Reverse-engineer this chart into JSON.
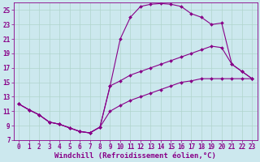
{
  "xlabel": "Windchill (Refroidissement éolien,°C)",
  "background_color": "#cce8ee",
  "grid_color": "#b0d4cc",
  "line_color": "#880088",
  "xlim": [
    -0.5,
    23.5
  ],
  "ylim": [
    7,
    26
  ],
  "xticks": [
    0,
    1,
    2,
    3,
    4,
    5,
    6,
    7,
    8,
    9,
    10,
    11,
    12,
    13,
    14,
    15,
    16,
    17,
    18,
    19,
    20,
    21,
    22,
    23
  ],
  "yticks": [
    7,
    9,
    11,
    13,
    15,
    17,
    19,
    21,
    23,
    25
  ],
  "line1_x": [
    0,
    1,
    2,
    3,
    4,
    5,
    6,
    7,
    8,
    9,
    10,
    11,
    12,
    13,
    14,
    15,
    16,
    17,
    18,
    19,
    20,
    21,
    22,
    23
  ],
  "line1_y": [
    12.0,
    11.2,
    10.5,
    9.5,
    9.2,
    8.7,
    8.2,
    8.0,
    8.8,
    14.5,
    21.0,
    24.0,
    25.5,
    25.8,
    25.9,
    25.8,
    25.5,
    24.5,
    24.0,
    23.0,
    23.2,
    17.5,
    16.5,
    15.5
  ],
  "line2_x": [
    0,
    1,
    2,
    3,
    4,
    5,
    6,
    7,
    8,
    9,
    10,
    11,
    12,
    13,
    14,
    15,
    16,
    17,
    18,
    19,
    20,
    21,
    22,
    23
  ],
  "line2_y": [
    12.0,
    11.2,
    10.5,
    9.5,
    9.2,
    8.7,
    8.2,
    8.0,
    8.8,
    14.5,
    15.2,
    16.0,
    16.5,
    17.0,
    17.5,
    18.0,
    18.5,
    19.0,
    19.5,
    20.0,
    19.8,
    17.5,
    16.5,
    15.5
  ],
  "line3_x": [
    0,
    1,
    2,
    3,
    4,
    5,
    6,
    7,
    8,
    9,
    10,
    11,
    12,
    13,
    14,
    15,
    16,
    17,
    18,
    19,
    20,
    21,
    22,
    23
  ],
  "line3_y": [
    12.0,
    11.2,
    10.5,
    9.5,
    9.2,
    8.7,
    8.2,
    8.0,
    8.8,
    11.0,
    11.8,
    12.5,
    13.0,
    13.5,
    14.0,
    14.5,
    15.0,
    15.2,
    15.5,
    15.5,
    15.5,
    15.5,
    15.5,
    15.5
  ],
  "tick_fontsize": 5.5,
  "label_fontsize": 6.5
}
